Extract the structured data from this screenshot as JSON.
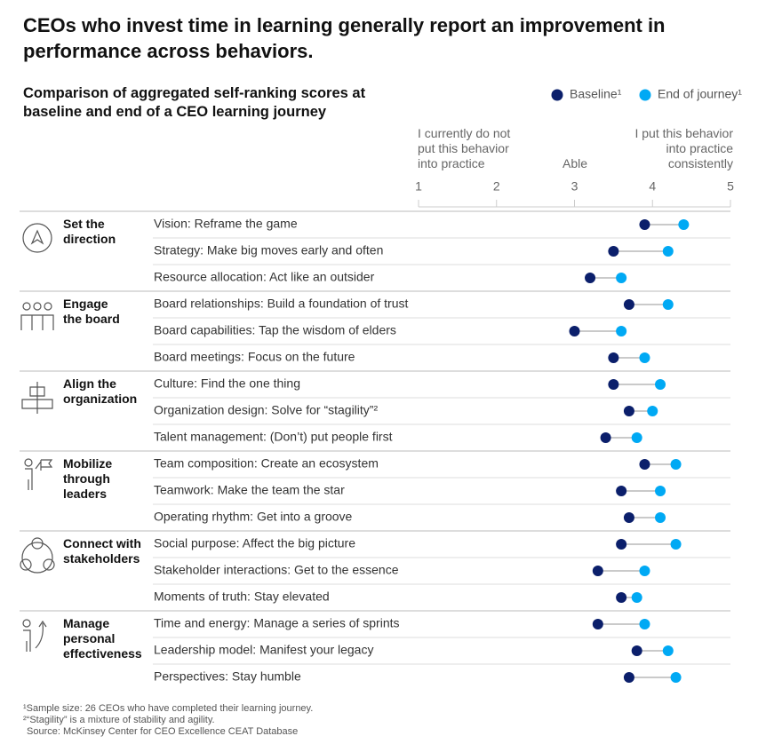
{
  "chart_data": {
    "type": "dumbbell",
    "title": "CEOs who invest time in learning generally report an improvement in performance across behaviors.",
    "subtitle": "Comparison of aggregated self-ranking scores at\nbaseline and end of a CEO learning journey",
    "scale_labels": [
      "I currently do not\nput this behavior\ninto practice",
      "Able",
      "I put this behavior\ninto practice\nconsistently"
    ],
    "categories": [
      "Vision: Reframe the game",
      "Strategy: Make big moves early and often",
      "Resource allocation: Act like an outsider",
      "Board relationships: Build a foundation of trust",
      "Board capabilities: Tap the wisdom of elders",
      "Board meetings: Focus on the future",
      "Culture: Find the one thing",
      "Organization design: Solve for “stagility”²",
      "Talent management: (Don’t) put people first",
      "Team composition: Create an ecosystem",
      "Teamwork: Make the team the star",
      "Operating rhythm: Get into a groove",
      "Social purpose: Affect the big picture",
      "Stakeholder interactions: Get to the essence",
      "Moments of truth: Stay elevated",
      "Time and energy: Manage a series of sprints",
      "Leadership model: Manifest your legacy",
      "Perspectives: Stay humble"
    ],
    "category_groups": [
      "Set the\ndirection",
      null,
      null,
      "Engage\nthe board",
      null,
      null,
      "Align the\norganization",
      null,
      null,
      "Mobilize\nthrough\nleaders",
      null,
      null,
      "Connect with\nstakeholders",
      null,
      null,
      "Manage\npersonal\neffectiveness",
      null,
      null
    ],
    "series": [
      {
        "name": "Baseline¹",
        "color": "#0b1f6b",
        "values": [
          3.9,
          3.5,
          3.2,
          3.7,
          3.0,
          3.5,
          3.5,
          3.7,
          3.4,
          3.9,
          3.6,
          3.7,
          3.6,
          3.3,
          3.6,
          3.3,
          3.8,
          3.7
        ]
      },
      {
        "name": "End of journey¹",
        "color": "#00a9f4",
        "values": [
          4.4,
          4.2,
          3.6,
          4.2,
          3.6,
          3.9,
          4.1,
          4.0,
          3.8,
          4.3,
          4.1,
          4.1,
          4.3,
          3.9,
          3.8,
          3.9,
          4.2,
          4.3
        ]
      }
    ],
    "xlim": [
      1,
      5
    ],
    "xticks": [
      1,
      2,
      3,
      4,
      5
    ],
    "footnotes": [
      "¹Sample size: 26 CEOs who have completed their learning journey.",
      "²“Stagility” is a mixture of stability and agility.",
      "Source: McKinsey Center for CEO Excellence CEAT Database"
    ]
  }
}
